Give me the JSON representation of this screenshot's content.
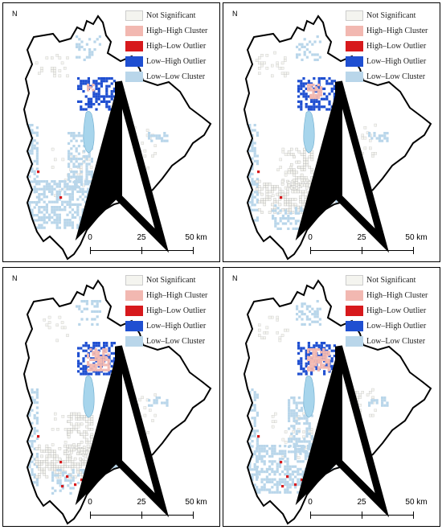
{
  "legend": [
    {
      "label": "Not Significant",
      "color": "#f4f4ef"
    },
    {
      "label": "High–High Cluster",
      "color": "#f2b8b1"
    },
    {
      "label": "High–Low Outlier",
      "color": "#d7191c"
    },
    {
      "label": "Low–High Outlier",
      "color": "#1f4fd1"
    },
    {
      "label": "Low–Low Cluster",
      "color": "#b9d6ea"
    }
  ],
  "north_label": "N",
  "scale_labels": [
    "0",
    "25",
    "50 km"
  ],
  "lake_color": "#a7d5ec",
  "panels": [
    {
      "id": "panel-1",
      "highHigh": "low",
      "southCluster": "lowlow"
    },
    {
      "id": "panel-2",
      "highHigh": "medium",
      "southCluster": "notsig"
    },
    {
      "id": "panel-3",
      "highHigh": "high",
      "southCluster": "notsig-outlier"
    },
    {
      "id": "panel-4",
      "highHigh": "high",
      "southCluster": "lowlow-outlier"
    }
  ]
}
